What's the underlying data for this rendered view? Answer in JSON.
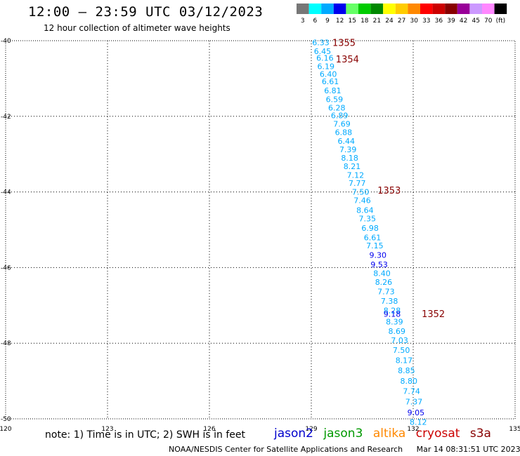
{
  "header": {
    "title": "12:00 – 23:59 UTC 03/12/2023",
    "subtitle": "12 hour collection of altimeter wave heights"
  },
  "legend": {
    "labels": [
      "3",
      "6",
      "9",
      "12",
      "15",
      "18",
      "21",
      "24",
      "27",
      "30",
      "33",
      "36",
      "39",
      "42",
      "45",
      "70",
      "(ft)"
    ],
    "colors": [
      "#777777",
      "#00ffff",
      "#00aaff",
      "#0000ee",
      "#66ff66",
      "#00cc00",
      "#008800",
      "#ffff00",
      "#ffcc00",
      "#ff8800",
      "#ff0000",
      "#cc0000",
      "#880000",
      "#990099",
      "#cc99ff",
      "#ff88ff",
      "#000000"
    ]
  },
  "note": "note:  1) Time is in UTC; 2) SWH is in feet",
  "satellites": [
    {
      "name": "jason2",
      "color": "#0000cc"
    },
    {
      "name": "jason3",
      "color": "#009900"
    },
    {
      "name": "altika",
      "color": "#ff8800"
    },
    {
      "name": "cryosat",
      "color": "#cc0000"
    },
    {
      "name": "s3a",
      "color": "#880000"
    }
  ],
  "footer": {
    "credit": "NOAA/NESDIS Center for Satellite Applications and Research",
    "timestamp": "Mar 14 08:31:51 UTC 2023"
  },
  "chart_data": {
    "type": "scatter",
    "x_ticks": [
      "120",
      "123",
      "126",
      "129",
      "132",
      "135"
    ],
    "y_ticks": [
      "-40",
      "-42",
      "-44",
      "-46",
      "-48",
      "-50"
    ],
    "xlim": [
      120,
      135
    ],
    "ylim": [
      -50,
      -40
    ],
    "grid": true,
    "points": [
      {
        "lon": 129.28,
        "lat": -40.05,
        "label": "6.33",
        "color": "#00aaff"
      },
      {
        "lon": 129.33,
        "lat": -40.28,
        "label": "6.45",
        "color": "#00aaff"
      },
      {
        "lon": 129.4,
        "lat": -40.45,
        "label": "6.16",
        "color": "#00aaff"
      },
      {
        "lon": 129.43,
        "lat": -40.68,
        "label": "6.19",
        "color": "#00aaff"
      },
      {
        "lon": 129.5,
        "lat": -40.88,
        "label": "6.40",
        "color": "#00aaff"
      },
      {
        "lon": 129.56,
        "lat": -41.08,
        "label": "6.61",
        "color": "#00aaff"
      },
      {
        "lon": 129.63,
        "lat": -41.32,
        "label": "6.81",
        "color": "#00aaff"
      },
      {
        "lon": 129.68,
        "lat": -41.55,
        "label": "6.59",
        "color": "#00aaff"
      },
      {
        "lon": 129.75,
        "lat": -41.77,
        "label": "6.28",
        "color": "#00aaff"
      },
      {
        "lon": 129.83,
        "lat": -41.98,
        "label": "6.89",
        "color": "#00aaff"
      },
      {
        "lon": 129.9,
        "lat": -42.2,
        "label": "7.69",
        "color": "#00aaff"
      },
      {
        "lon": 129.95,
        "lat": -42.42,
        "label": "6.88",
        "color": "#00aaff"
      },
      {
        "lon": 130.03,
        "lat": -42.65,
        "label": "6.44",
        "color": "#00aaff"
      },
      {
        "lon": 130.08,
        "lat": -42.88,
        "label": "7.39",
        "color": "#00aaff"
      },
      {
        "lon": 130.13,
        "lat": -43.1,
        "label": "8.18",
        "color": "#00aaff"
      },
      {
        "lon": 130.2,
        "lat": -43.32,
        "label": "8.21",
        "color": "#00aaff"
      },
      {
        "lon": 130.3,
        "lat": -43.55,
        "label": "7.12",
        "color": "#00aaff"
      },
      {
        "lon": 130.35,
        "lat": -43.77,
        "label": "7.77",
        "color": "#00aaff"
      },
      {
        "lon": 130.45,
        "lat": -44.0,
        "label": "7.50",
        "color": "#00aaff"
      },
      {
        "lon": 130.5,
        "lat": -44.22,
        "label": "7.46",
        "color": "#00aaff"
      },
      {
        "lon": 130.58,
        "lat": -44.48,
        "label": "8.64",
        "color": "#00aaff"
      },
      {
        "lon": 130.65,
        "lat": -44.7,
        "label": "7.35",
        "color": "#00aaff"
      },
      {
        "lon": 130.73,
        "lat": -44.95,
        "label": "6.98",
        "color": "#00aaff"
      },
      {
        "lon": 130.8,
        "lat": -45.2,
        "label": "6.61",
        "color": "#00aaff"
      },
      {
        "lon": 130.87,
        "lat": -45.42,
        "label": "7.15",
        "color": "#00aaff"
      },
      {
        "lon": 130.96,
        "lat": -45.67,
        "label": "9.30",
        "color": "#0000ee"
      },
      {
        "lon": 131.0,
        "lat": -45.92,
        "label": "9.53",
        "color": "#0000ee"
      },
      {
        "lon": 131.08,
        "lat": -46.15,
        "label": "8.40",
        "color": "#00aaff"
      },
      {
        "lon": 131.13,
        "lat": -46.38,
        "label": "8.26",
        "color": "#00aaff"
      },
      {
        "lon": 131.2,
        "lat": -46.63,
        "label": "7.73",
        "color": "#00aaff"
      },
      {
        "lon": 131.3,
        "lat": -46.88,
        "label": "7.38",
        "color": "#00aaff"
      },
      {
        "lon": 131.38,
        "lat": -47.13,
        "label": "8.28",
        "color": "#00aaff"
      },
      {
        "lon": 131.38,
        "lat": -47.23,
        "label": "9.18",
        "color": "#0000ee"
      },
      {
        "lon": 131.45,
        "lat": -47.43,
        "label": "8.39",
        "color": "#00aaff"
      },
      {
        "lon": 131.52,
        "lat": -47.68,
        "label": "8.69",
        "color": "#00aaff"
      },
      {
        "lon": 131.6,
        "lat": -47.92,
        "label": "7.03",
        "color": "#00aaff"
      },
      {
        "lon": 131.65,
        "lat": -48.18,
        "label": "7.50",
        "color": "#00aaff"
      },
      {
        "lon": 131.73,
        "lat": -48.45,
        "label": "8.17",
        "color": "#00aaff"
      },
      {
        "lon": 131.8,
        "lat": -48.72,
        "label": "8.85",
        "color": "#00aaff"
      },
      {
        "lon": 131.87,
        "lat": -49.0,
        "label": "8.80",
        "color": "#00aaff"
      },
      {
        "lon": 131.95,
        "lat": -49.27,
        "label": "7.74",
        "color": "#00aaff"
      },
      {
        "lon": 132.02,
        "lat": -49.55,
        "label": "7.37",
        "color": "#00aaff"
      },
      {
        "lon": 132.08,
        "lat": -49.83,
        "label": "9.05",
        "color": "#0000ee"
      },
      {
        "lon": 132.15,
        "lat": -50.08,
        "label": "8.12",
        "color": "#00aaff"
      }
    ],
    "time_labels": [
      {
        "lon": 129.62,
        "lat": -40.05,
        "label": "1355",
        "color": "#880000"
      },
      {
        "lon": 129.72,
        "lat": -40.48,
        "label": "1354",
        "color": "#880000"
      },
      {
        "lon": 130.95,
        "lat": -43.95,
        "label": "1353",
        "color": "#880000"
      },
      {
        "lon": 132.25,
        "lat": -47.22,
        "label": "1352",
        "color": "#880000"
      }
    ]
  }
}
